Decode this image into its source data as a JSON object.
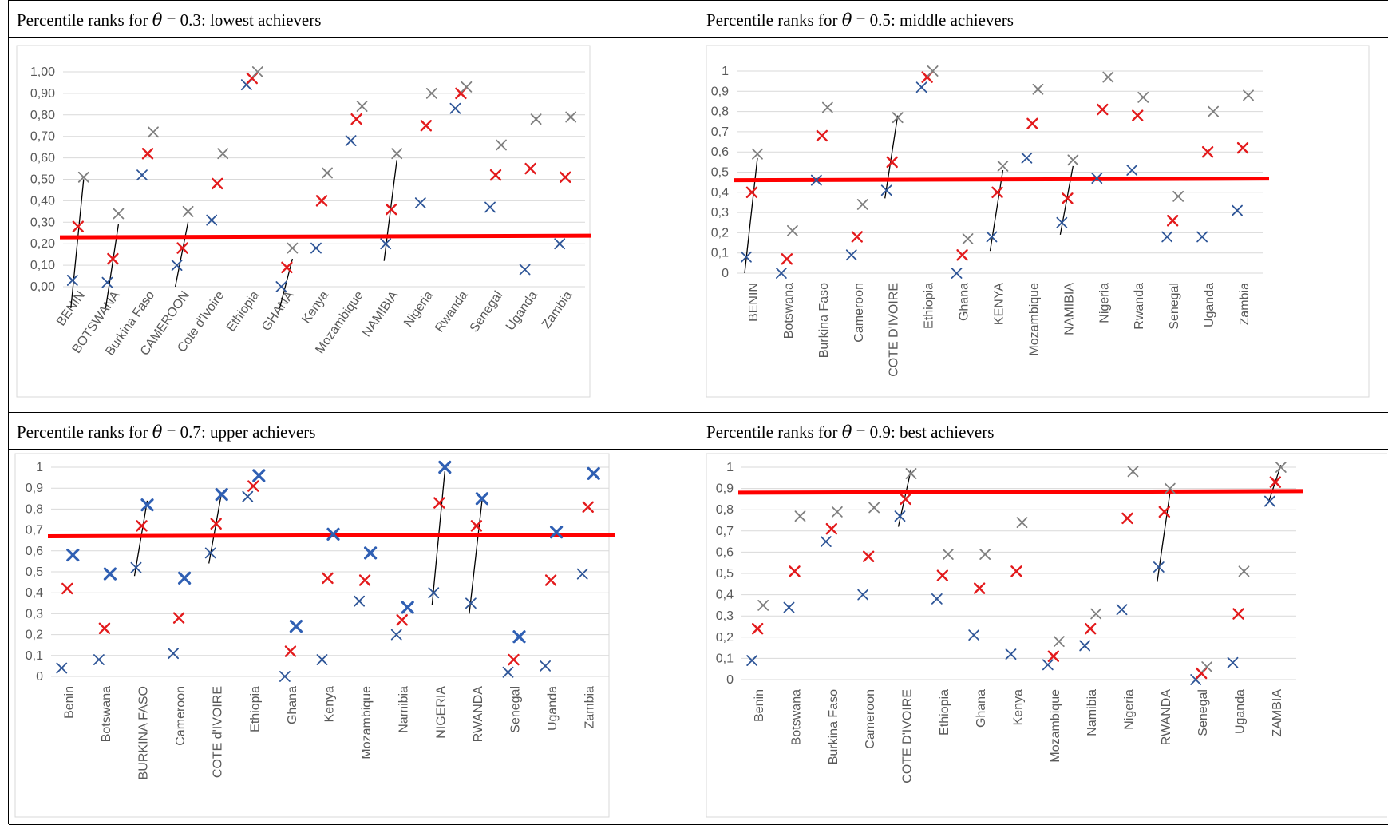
{
  "panels": [
    {
      "title_prefix": "Percentile ranks for ",
      "theta_symbol": "θ",
      "title_value": " = 0.3",
      "title_suffix": ": lowest achievers"
    },
    {
      "title_prefix": "Percentile ranks for ",
      "theta_symbol": "θ",
      "title_value": " = 0.5",
      "title_suffix": ": middle achievers"
    },
    {
      "title_prefix": "Percentile ranks for ",
      "theta_symbol": "θ",
      "title_value": " = 0.7",
      "title_suffix": ": upper achievers"
    },
    {
      "title_prefix": "Percentile ranks for ",
      "theta_symbol": "θ",
      "title_value": " = 0.9",
      "title_suffix": ": best achievers"
    }
  ],
  "colors": {
    "blue": "#2e5597",
    "red": "#e31a1c",
    "gray": "#7f7f7f",
    "threshold": "#ff0000",
    "connector": "#000000"
  },
  "chart_data": [
    {
      "type": "scatter",
      "title": "",
      "ylim": [
        0,
        1
      ],
      "yticks": [
        "0,00",
        "0,10",
        "0,20",
        "0,30",
        "0,40",
        "0,50",
        "0,60",
        "0,70",
        "0,80",
        "0,90",
        "1,00"
      ],
      "grid": true,
      "categories": [
        "BENIN",
        "BOTSWANA",
        "Burkina Faso",
        "CAMEROON",
        "Cote d'Ivoire",
        "Ethiopia",
        "GHANA",
        "Kenya",
        "Mozambique",
        "NAMIBIA",
        "Nigeria",
        "Rwanda",
        "Senegal",
        "Uganda",
        "Zambia"
      ],
      "threshold": 0.23,
      "series": [
        {
          "color": "blue",
          "values": [
            0.03,
            0.02,
            0.52,
            0.1,
            0.31,
            0.94,
            0.0,
            0.18,
            0.68,
            0.2,
            0.39,
            0.83,
            0.37,
            0.08,
            0.2
          ]
        },
        {
          "color": "red",
          "values": [
            0.28,
            0.13,
            0.62,
            0.18,
            0.48,
            0.97,
            0.09,
            0.4,
            0.78,
            0.36,
            0.75,
            0.9,
            0.52,
            0.55,
            0.51
          ]
        },
        {
          "color": "gray",
          "values": [
            0.51,
            0.34,
            0.72,
            0.35,
            0.62,
            1.0,
            0.18,
            0.53,
            0.84,
            0.62,
            0.9,
            0.93,
            0.66,
            0.78,
            0.79
          ]
        }
      ],
      "connectors": [
        {
          "category": "BENIN",
          "y_low": -0.1,
          "y_high": 0.5
        },
        {
          "category": "BOTSWANA",
          "y_low": -0.1,
          "y_high": 0.29
        },
        {
          "category": "CAMEROON",
          "y_low": 0.0,
          "y_high": 0.3
        },
        {
          "category": "GHANA",
          "y_low": -0.1,
          "y_high": 0.13
        },
        {
          "category": "NAMIBIA",
          "y_low": 0.12,
          "y_high": 0.59
        }
      ]
    },
    {
      "type": "scatter",
      "title": "",
      "ylim": [
        0,
        1
      ],
      "yticks": [
        "0",
        "0,1",
        "0,2",
        "0,3",
        "0,4",
        "0,5",
        "0,6",
        "0,7",
        "0,8",
        "0,9",
        "1"
      ],
      "grid": true,
      "categories": [
        "BENIN",
        "Botswana",
        "Burkina Faso",
        "Cameroon",
        "COTE D'IVOIRE",
        "Ethiopia",
        "Ghana",
        "KENYA",
        "Mozambique",
        "NAMIBIA",
        "Nigeria",
        "Rwanda",
        "Senegal",
        "Uganda",
        "Zambia"
      ],
      "threshold": 0.46,
      "series": [
        {
          "color": "blue",
          "values": [
            0.08,
            0.0,
            0.46,
            0.09,
            0.41,
            0.92,
            0.0,
            0.18,
            0.57,
            0.25,
            0.47,
            0.51,
            0.18,
            0.18,
            0.31
          ]
        },
        {
          "color": "red",
          "values": [
            0.4,
            0.07,
            0.68,
            0.18,
            0.55,
            0.97,
            0.09,
            0.4,
            0.74,
            0.37,
            0.81,
            0.78,
            0.26,
            0.6,
            0.62
          ]
        },
        {
          "color": "gray",
          "values": [
            0.59,
            0.21,
            0.82,
            0.34,
            0.77,
            1.0,
            0.17,
            0.53,
            0.91,
            0.56,
            0.97,
            0.87,
            0.38,
            0.8,
            0.88
          ]
        }
      ],
      "connectors": [
        {
          "category": "BENIN",
          "y_low": 0.0,
          "y_high": 0.57
        },
        {
          "category": "COTE D'IVOIRE",
          "y_low": 0.37,
          "y_high": 0.78
        },
        {
          "category": "KENYA",
          "y_low": 0.11,
          "y_high": 0.51
        },
        {
          "category": "NAMIBIA",
          "y_low": 0.19,
          "y_high": 0.53
        }
      ]
    },
    {
      "type": "scatter",
      "title": "",
      "ylim": [
        0,
        1
      ],
      "yticks": [
        "0",
        "0,1",
        "0,2",
        "0,3",
        "0,4",
        "0,5",
        "0,6",
        "0,7",
        "0,8",
        "0,9",
        "1"
      ],
      "grid": true,
      "categories": [
        "Benin",
        "Botswana",
        "BURKINA FASO",
        "Cameroon",
        "COTE d'IVOIRE",
        "Ethiopia",
        "Ghana",
        "Kenya",
        "Mozambique",
        "Namibia",
        "NIGERIA",
        "RWANDA",
        "Senegal",
        "Uganda",
        "Zambia"
      ],
      "threshold": 0.67,
      "series": [
        {
          "color": "blue-dark",
          "values": [
            0.04,
            0.08,
            0.52,
            0.11,
            0.59,
            0.86,
            0.0,
            0.08,
            0.36,
            0.2,
            0.4,
            0.35,
            0.02,
            0.05,
            0.49
          ]
        },
        {
          "color": "red",
          "values": [
            0.42,
            0.23,
            0.72,
            0.28,
            0.73,
            0.91,
            0.12,
            0.47,
            0.46,
            0.27,
            0.83,
            0.72,
            0.08,
            0.46,
            0.81
          ]
        },
        {
          "color": "blue-bright",
          "values": [
            0.58,
            0.49,
            0.82,
            0.47,
            0.87,
            0.96,
            0.24,
            0.68,
            0.59,
            0.33,
            1.0,
            0.85,
            0.19,
            0.69,
            0.97
          ]
        }
      ],
      "connectors": [
        {
          "category": "BURKINA FASO",
          "y_low": 0.48,
          "y_high": 0.84
        },
        {
          "category": "COTE d'IVOIRE",
          "y_low": 0.54,
          "y_high": 0.88
        },
        {
          "category": "NIGERIA",
          "y_low": 0.34,
          "y_high": 0.98
        },
        {
          "category": "RWANDA",
          "y_low": 0.3,
          "y_high": 0.84
        }
      ]
    },
    {
      "type": "scatter",
      "title": "",
      "ylim": [
        0,
        1
      ],
      "yticks": [
        "0",
        "0,1",
        "0,2",
        "0,3",
        "0,4",
        "0,5",
        "0,6",
        "0,7",
        "0,8",
        "0,9",
        "1"
      ],
      "grid": true,
      "categories": [
        "Benin",
        "Botswana",
        "Burkina Faso",
        "Cameroon",
        "COTE D'IVOIRE",
        "Ethiopia",
        "Ghana",
        "Kenya",
        "Mozambique",
        "Namibia",
        "Nigeria",
        "RWANDA",
        "Senegal",
        "Uganda",
        "ZAMBIA"
      ],
      "threshold": 0.88,
      "series": [
        {
          "color": "blue",
          "values": [
            0.09,
            0.34,
            0.65,
            0.4,
            0.77,
            0.38,
            0.21,
            0.12,
            0.07,
            0.16,
            0.33,
            0.53,
            0.0,
            0.08,
            0.84
          ]
        },
        {
          "color": "red",
          "values": [
            0.24,
            0.51,
            0.71,
            0.58,
            0.85,
            0.49,
            0.43,
            0.51,
            0.11,
            0.24,
            0.76,
            0.79,
            0.03,
            0.31,
            0.93
          ]
        },
        {
          "color": "gray",
          "values": [
            0.35,
            0.77,
            0.79,
            0.81,
            0.97,
            0.59,
            0.59,
            0.74,
            0.18,
            0.31,
            0.98,
            0.9,
            0.06,
            0.51,
            1.0
          ]
        }
      ],
      "connectors": [
        {
          "category": "COTE D'IVOIRE",
          "y_low": 0.72,
          "y_high": 0.99
        },
        {
          "category": "RWANDA",
          "y_low": 0.46,
          "y_high": 0.88
        },
        {
          "category": "ZAMBIA",
          "y_low": 0.83,
          "y_high": 1.01
        }
      ]
    }
  ]
}
